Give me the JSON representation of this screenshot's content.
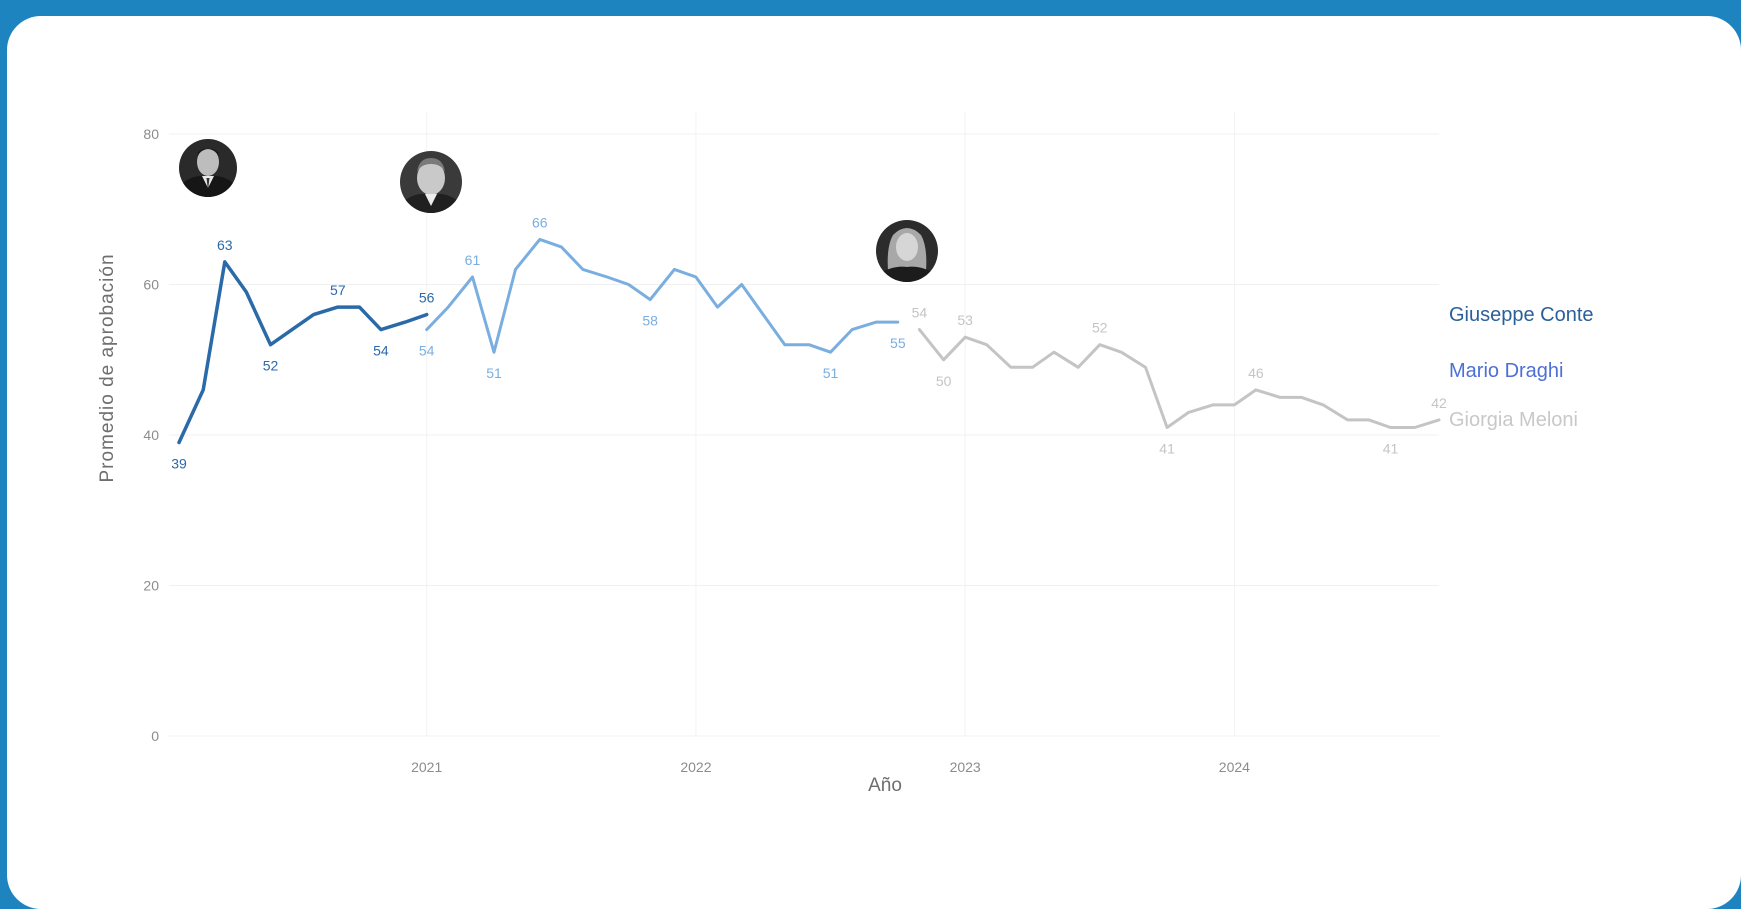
{
  "chart_data": {
    "type": "line",
    "xlabel": "Año",
    "ylabel": "Promedio de aprobación",
    "ylim": [
      0,
      80
    ],
    "yticks": [
      0,
      20,
      40,
      60,
      80
    ],
    "xticks": [
      "2021",
      "2022",
      "2023",
      "2024"
    ],
    "xlim": [
      2020.08,
      2024.76
    ],
    "grid": true,
    "legend": "right",
    "series": [
      {
        "name": "Giuseppe Conte",
        "color": "#2b6aa8",
        "portrait": "man-in-suit-portrait",
        "x": [
          2020.08,
          2020.17,
          2020.25,
          2020.33,
          2020.42,
          2020.5,
          2020.58,
          2020.67,
          2020.75,
          2020.83,
          2020.92,
          2021.0
        ],
        "y": [
          39,
          46,
          63,
          59,
          52,
          54,
          56,
          57,
          57,
          54,
          55,
          56
        ],
        "labels": [
          {
            "x": 2020.08,
            "y": 39,
            "text": "39",
            "pos": "below"
          },
          {
            "x": 2020.25,
            "y": 63,
            "text": "63",
            "pos": "above"
          },
          {
            "x": 2020.42,
            "y": 52,
            "text": "52",
            "pos": "below"
          },
          {
            "x": 2020.67,
            "y": 57,
            "text": "57",
            "pos": "above"
          },
          {
            "x": 2020.83,
            "y": 54,
            "text": "54",
            "pos": "below"
          },
          {
            "x": 2021.0,
            "y": 56,
            "text": "56",
            "pos": "above"
          }
        ]
      },
      {
        "name": "Mario Draghi",
        "color": "#7aaee0",
        "portrait": "older-man-portrait",
        "x": [
          2021.0,
          2021.08,
          2021.17,
          2021.25,
          2021.33,
          2021.42,
          2021.5,
          2021.58,
          2021.67,
          2021.75,
          2021.83,
          2021.92,
          2022.0,
          2022.08,
          2022.17,
          2022.25,
          2022.33,
          2022.42,
          2022.5,
          2022.58,
          2022.67,
          2022.75
        ],
        "y": [
          54,
          57,
          61,
          51,
          62,
          66,
          65,
          62,
          61,
          60,
          58,
          62,
          61,
          57,
          60,
          56,
          52,
          52,
          51,
          54,
          55,
          55
        ],
        "labels": [
          {
            "x": 2021.0,
            "y": 54,
            "text": "54",
            "pos": "below"
          },
          {
            "x": 2021.17,
            "y": 61,
            "text": "61",
            "pos": "above"
          },
          {
            "x": 2021.25,
            "y": 51,
            "text": "51",
            "pos": "below"
          },
          {
            "x": 2021.42,
            "y": 66,
            "text": "66",
            "pos": "above"
          },
          {
            "x": 2021.83,
            "y": 58,
            "text": "58",
            "pos": "below"
          },
          {
            "x": 2022.5,
            "y": 51,
            "text": "51",
            "pos": "below"
          },
          {
            "x": 2022.75,
            "y": 55,
            "text": "55",
            "pos": "below"
          }
        ]
      },
      {
        "name": "Giorgia Meloni",
        "color": "#c4c4c4",
        "portrait": "woman-portrait",
        "x": [
          2022.83,
          2022.92,
          2023.0,
          2023.08,
          2023.17,
          2023.25,
          2023.33,
          2023.42,
          2023.5,
          2023.58,
          2023.67,
          2023.75,
          2023.83,
          2023.92,
          2024.0,
          2024.08,
          2024.17,
          2024.25,
          2024.33,
          2024.42,
          2024.5,
          2024.58,
          2024.67,
          2024.76
        ],
        "y": [
          54,
          50,
          53,
          52,
          49,
          49,
          51,
          49,
          52,
          51,
          49,
          41,
          43,
          44,
          44,
          46,
          45,
          45,
          44,
          42,
          42,
          41,
          41,
          42
        ],
        "labels": [
          {
            "x": 2022.83,
            "y": 54,
            "text": "54",
            "pos": "above"
          },
          {
            "x": 2022.92,
            "y": 50,
            "text": "50",
            "pos": "below"
          },
          {
            "x": 2023.0,
            "y": 53,
            "text": "53",
            "pos": "above"
          },
          {
            "x": 2023.5,
            "y": 52,
            "text": "52",
            "pos": "above"
          },
          {
            "x": 2023.75,
            "y": 41,
            "text": "41",
            "pos": "below"
          },
          {
            "x": 2024.08,
            "y": 46,
            "text": "46",
            "pos": "above"
          },
          {
            "x": 2024.58,
            "y": 41,
            "text": "41",
            "pos": "below"
          },
          {
            "x": 2024.76,
            "y": 42,
            "text": "42",
            "pos": "above"
          }
        ]
      }
    ]
  }
}
